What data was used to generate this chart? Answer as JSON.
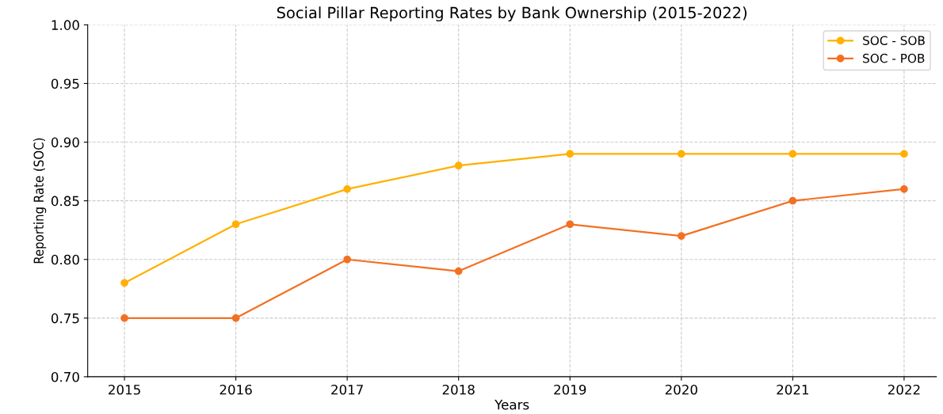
{
  "chart_data": {
    "type": "line",
    "title": "Social Pillar Reporting Rates by Bank Ownership (2015-2022)",
    "xlabel": "Years",
    "ylabel": "Reporting Rate (SOC)",
    "categories": [
      "2015",
      "2016",
      "2017",
      "2018",
      "2019",
      "2020",
      "2021",
      "2022"
    ],
    "series": [
      {
        "name": "SOC - SOB",
        "color": "#ffb000",
        "values": [
          0.78,
          0.83,
          0.86,
          0.88,
          0.89,
          0.89,
          0.89,
          0.89
        ]
      },
      {
        "name": "SOC - POB",
        "color": "#f37021",
        "values": [
          0.75,
          0.75,
          0.8,
          0.79,
          0.83,
          0.82,
          0.85,
          0.86
        ]
      }
    ],
    "ylim": [
      0.7,
      1.0
    ],
    "yticks": [
      {
        "value": 0.7,
        "label": "0.70"
      },
      {
        "value": 0.75,
        "label": "0.75"
      },
      {
        "value": 0.8,
        "label": "0.80"
      },
      {
        "value": 0.85,
        "label": "0.85"
      },
      {
        "value": 0.9,
        "label": "0.90"
      },
      {
        "value": 0.95,
        "label": "0.95"
      },
      {
        "value": 1.0,
        "label": "1.00"
      }
    ],
    "grid": true,
    "legend": "top right",
    "marker": "circle",
    "line_style": "solid"
  }
}
